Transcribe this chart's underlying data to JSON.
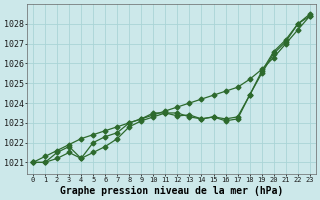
{
  "title": "Graphe pression niveau de la mer (hPa)",
  "bg_color": "#cce8ea",
  "grid_color": "#aad4d6",
  "line_color": "#2d6a2d",
  "xlim": [
    -0.5,
    23.5
  ],
  "ylim": [
    1020.4,
    1029.0
  ],
  "xticks": [
    0,
    1,
    2,
    3,
    4,
    5,
    6,
    7,
    8,
    9,
    10,
    11,
    12,
    13,
    14,
    15,
    16,
    17,
    18,
    19,
    20,
    21,
    22,
    23
  ],
  "yticks": [
    1021,
    1022,
    1023,
    1024,
    1025,
    1026,
    1027,
    1028
  ],
  "series1_x": [
    0,
    1,
    2,
    3,
    4,
    5,
    6,
    7,
    8,
    9,
    10,
    11,
    12,
    13,
    14,
    15,
    16,
    17,
    18,
    19,
    20,
    21,
    22,
    23
  ],
  "series1_y": [
    1021.0,
    1021.0,
    1021.2,
    1021.5,
    1021.2,
    1021.5,
    1021.8,
    1022.2,
    1022.8,
    1023.1,
    1023.3,
    1023.5,
    1023.35,
    1023.4,
    1023.2,
    1023.3,
    1023.1,
    1023.2,
    1024.4,
    1025.5,
    1026.5,
    1027.1,
    1028.0,
    1028.4
  ],
  "series2_x": [
    0,
    1,
    2,
    3,
    4,
    5,
    6,
    7,
    8,
    9,
    10,
    11,
    12,
    13,
    14,
    15,
    16,
    17,
    18,
    19,
    20,
    21,
    22,
    23
  ],
  "series2_y": [
    1021.0,
    1021.0,
    1021.5,
    1021.8,
    1021.2,
    1022.0,
    1022.3,
    1022.5,
    1023.0,
    1023.2,
    1023.5,
    1023.5,
    1023.5,
    1023.3,
    1023.2,
    1023.3,
    1023.2,
    1023.3,
    1024.4,
    1025.6,
    1026.6,
    1027.2,
    1028.0,
    1028.5
  ],
  "series3_x": [
    0,
    1,
    2,
    3,
    4,
    5,
    6,
    7,
    8,
    9,
    10,
    11,
    12,
    13,
    14,
    15,
    16,
    17,
    18,
    19,
    20,
    21,
    22,
    23
  ],
  "series3_y": [
    1021.0,
    1021.3,
    1021.6,
    1021.9,
    1022.2,
    1022.4,
    1022.6,
    1022.8,
    1023.0,
    1023.2,
    1023.4,
    1023.6,
    1023.8,
    1024.0,
    1024.2,
    1024.4,
    1024.6,
    1024.8,
    1025.2,
    1025.7,
    1026.3,
    1027.0,
    1027.7,
    1028.4
  ],
  "ylabel_fontsize": 6.0,
  "xlabel_fontsize": 5.0,
  "title_fontsize": 7.0,
  "markersize": 2.5,
  "linewidth": 0.9
}
